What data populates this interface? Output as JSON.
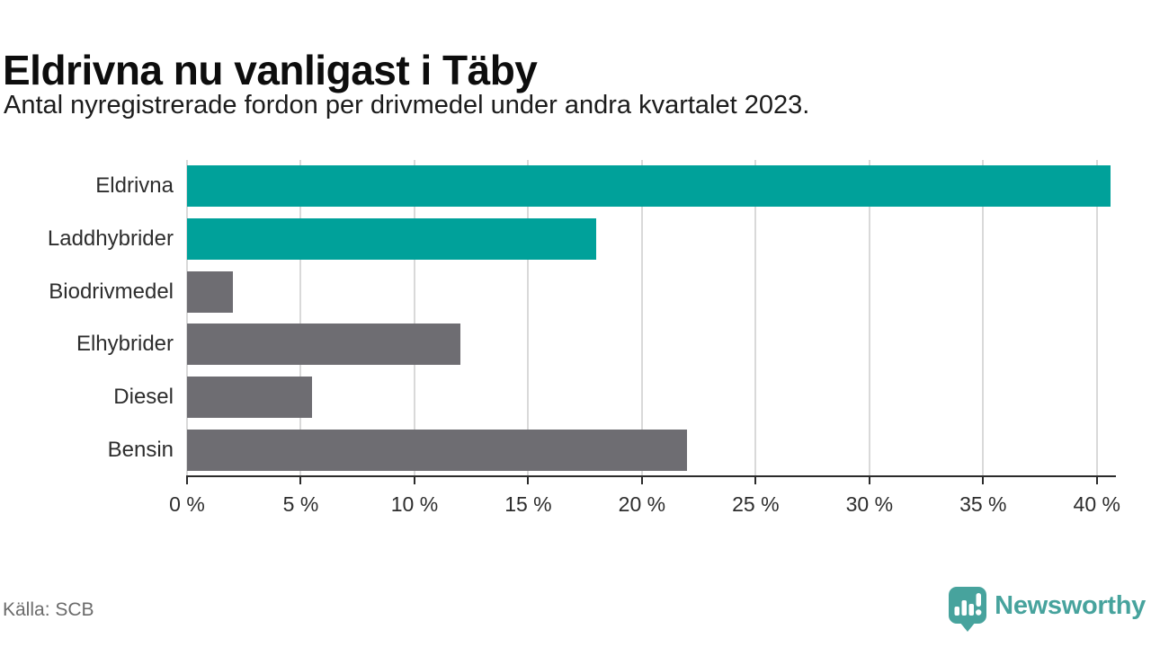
{
  "header": {
    "title": "Eldrivna nu vanligast i Täby",
    "subtitle": "Antal nyregistrerade fordon per drivmedel under andra kvartalet 2023."
  },
  "chart_data": {
    "type": "bar",
    "orientation": "horizontal",
    "title": "Eldrivna nu vanligast i Täby",
    "subtitle": "Antal nyregistrerade fordon per drivmedel under andra kvartalet 2023.",
    "categories": [
      "Eldrivna",
      "Laddhybrider",
      "Biodrivmedel",
      "Elhybrider",
      "Diesel",
      "Bensin"
    ],
    "values": [
      40.6,
      18,
      2,
      12,
      5.5,
      22
    ],
    "unit": "%",
    "xlim": [
      0,
      40.8
    ],
    "xticks": [
      0,
      5,
      10,
      15,
      20,
      25,
      30,
      35,
      40
    ],
    "xtick_suffix": " %",
    "grid": true,
    "legend": "none",
    "colors": {
      "per_bar": [
        "#00a19a",
        "#00a19a",
        "#6e6d72",
        "#6e6d72",
        "#6e6d72",
        "#6e6d72"
      ],
      "highlight": "#00a19a",
      "default": "#6e6d72",
      "gridline": "#d9d9d9",
      "axis": "#2b2b2b"
    }
  },
  "footer": {
    "source": "Källa: SCB",
    "brand": "Newsworthy",
    "brand_color": "#47a39d"
  }
}
